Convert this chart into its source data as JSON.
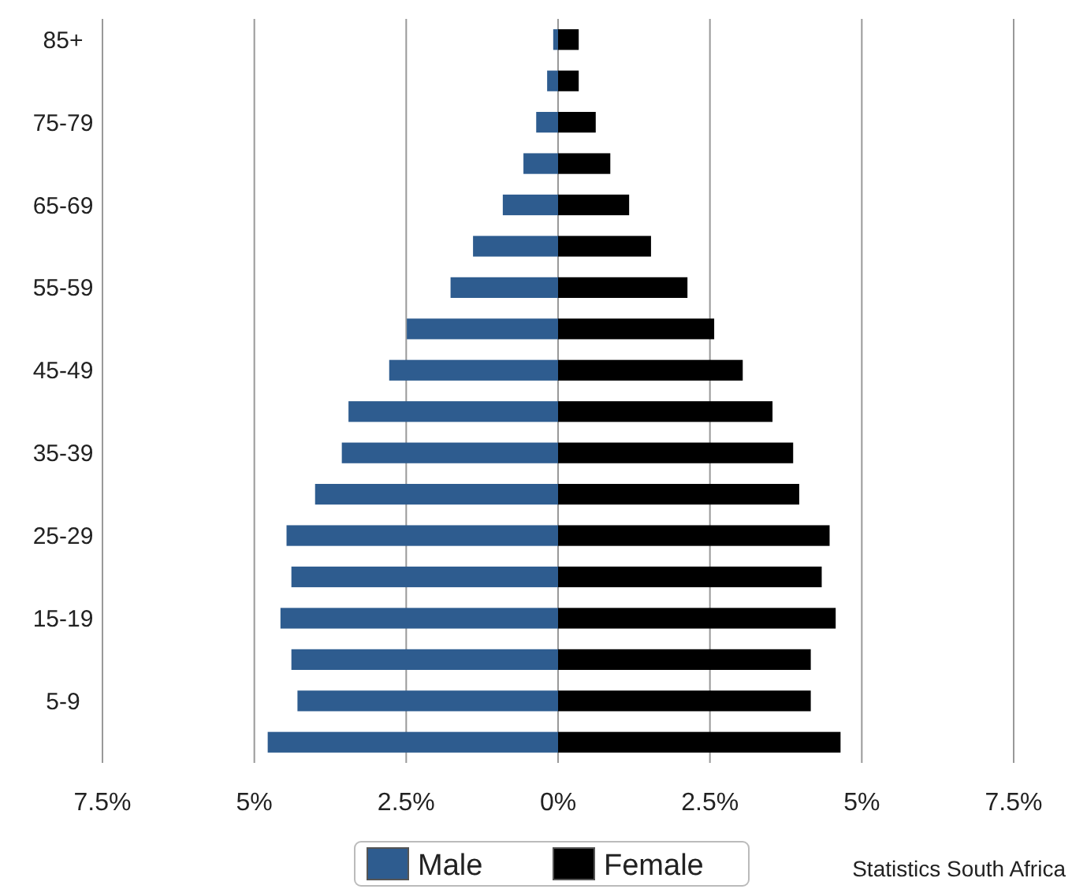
{
  "chart_data": {
    "type": "bar",
    "orientation": "horizontal",
    "categories": [
      "85+",
      null,
      "75-79",
      null,
      "65-69",
      null,
      "55-59",
      null,
      "45-49",
      null,
      "35-39",
      null,
      "25-29",
      null,
      "15-19",
      null,
      "5-9",
      null
    ],
    "series": [
      {
        "name": "Male",
        "color": "#2e5c8f",
        "values": [
          -0.08,
          -0.18,
          -0.36,
          -0.57,
          -0.91,
          -1.4,
          -1.77,
          -2.49,
          -2.78,
          -3.45,
          -3.56,
          -4.0,
          -4.47,
          -4.39,
          -4.57,
          -4.39,
          -4.29,
          -4.78
        ]
      },
      {
        "name": "Female",
        "color": "#000000",
        "values": [
          0.34,
          0.34,
          0.62,
          0.86,
          1.17,
          1.53,
          2.13,
          2.57,
          3.04,
          3.53,
          3.87,
          3.97,
          4.47,
          4.34,
          4.57,
          4.16,
          4.16,
          4.65
        ]
      }
    ],
    "xlim": [
      -7.5,
      7.5
    ],
    "xticks": [
      {
        "value": -7.5,
        "label": "7.5%"
      },
      {
        "value": -5,
        "label": "5%"
      },
      {
        "value": -2.5,
        "label": "2.5%"
      },
      {
        "value": 0,
        "label": "0%"
      },
      {
        "value": 2.5,
        "label": "2.5%"
      },
      {
        "value": 5,
        "label": "5%"
      },
      {
        "value": 7.5,
        "label": "7.5%"
      }
    ],
    "grid": "x",
    "legend": "bottom",
    "stacked": true,
    "annotations": [
      "Statistics South Africa"
    ]
  }
}
